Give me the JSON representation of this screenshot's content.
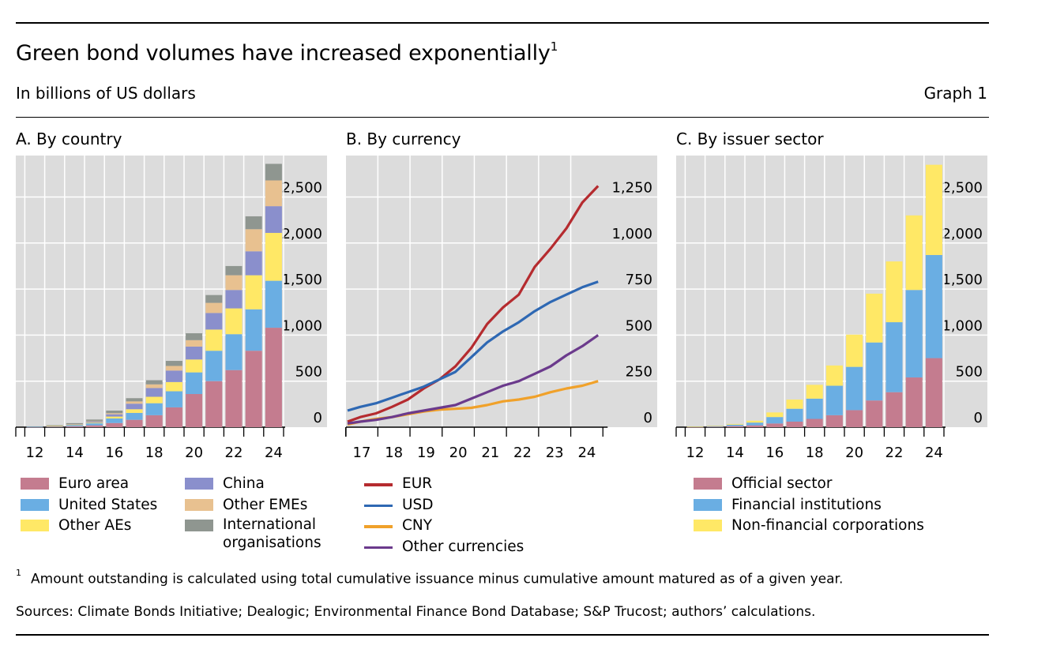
{
  "header": {
    "title": "Green bond volumes have increased exponentially",
    "title_note": "1",
    "subtitle": "In billions of US dollars",
    "graph_label": "Graph 1"
  },
  "footer": {
    "footnote_marker": "1",
    "footnote": "Amount outstanding is calculated using total cumulative issuance minus cumulative amount matured as of a given year.",
    "sources": "Sources: Climate Bonds Initiative; Dealogic; Environmental Finance Bond Database; S&P Trucost; authors’ calculations."
  },
  "colors": {
    "plot_bg": "#dcdcdc",
    "grid": "#ffffff",
    "euro_area": "#c47c8f",
    "united_states": "#6aaee3",
    "other_aes": "#ffe866",
    "china": "#8a8fcc",
    "other_emes": "#e8c190",
    "international_organisations": "#8f9690",
    "eur": "#b52b2f",
    "usd": "#2e68b3",
    "cny": "#f0a12a",
    "other_currencies": "#6b3a8c"
  },
  "chart_data": [
    {
      "type": "bar",
      "stacked": true,
      "title": "A. By country",
      "categories": [
        "12",
        "13",
        "14",
        "15",
        "16",
        "17",
        "18",
        "19",
        "20",
        "21",
        "22",
        "23",
        "24"
      ],
      "x_tick_labels": [
        "12",
        "14",
        "16",
        "18",
        "20",
        "22",
        "24"
      ],
      "y_ticks": [
        "0",
        "500",
        "1,000",
        "1,500",
        "2,000",
        "2,500"
      ],
      "y_tick_values": [
        0,
        500,
        1000,
        1500,
        2000,
        2500
      ],
      "ylim": [
        0,
        2950
      ],
      "y_axis_side": "right",
      "grid": true,
      "series": [
        {
          "name": "Euro area",
          "color_key": "euro_area",
          "values": [
            2,
            5,
            10,
            20,
            45,
            80,
            130,
            215,
            360,
            500,
            620,
            830,
            1080
          ]
        },
        {
          "name": "United States",
          "color_key": "united_states",
          "values": [
            2,
            6,
            12,
            22,
            50,
            75,
            130,
            175,
            235,
            330,
            390,
            450,
            510
          ]
        },
        {
          "name": "Other AEs",
          "color_key": "other_aes",
          "values": [
            0,
            2,
            5,
            8,
            20,
            40,
            70,
            100,
            140,
            230,
            280,
            370,
            520
          ]
        },
        {
          "name": "China",
          "color_key": "china",
          "values": [
            0,
            0,
            3,
            10,
            25,
            60,
            95,
            125,
            140,
            180,
            200,
            260,
            290
          ]
        },
        {
          "name": "Other EMEs",
          "color_key": "other_emes",
          "values": [
            0,
            0,
            2,
            5,
            12,
            25,
            40,
            50,
            70,
            110,
            160,
            240,
            280
          ]
        },
        {
          "name": "International organisations",
          "color_key": "international_organisations",
          "values": [
            5,
            8,
            12,
            18,
            28,
            35,
            45,
            55,
            75,
            85,
            100,
            140,
            180
          ]
        }
      ],
      "legend_order": [
        "Euro area",
        "United States",
        "Other AEs",
        "China",
        "Other EMEs",
        "International organisations"
      ]
    },
    {
      "type": "line",
      "title": "B. By currency",
      "x_tick_labels": [
        "17",
        "18",
        "19",
        "20",
        "21",
        "22",
        "23",
        "24"
      ],
      "xlim": [
        2016.6,
        2024.6
      ],
      "y_ticks": [
        "0",
        "250",
        "500",
        "750",
        "1,000",
        "1,250"
      ],
      "y_tick_values": [
        0,
        250,
        500,
        750,
        1000,
        1250
      ],
      "ylim": [
        0,
        1475
      ],
      "y_axis_side": "right",
      "grid": true,
      "series": [
        {
          "name": "EUR",
          "color_key": "eur",
          "points": [
            [
              2016.6,
              30
            ],
            [
              2017.0,
              55
            ],
            [
              2017.5,
              75
            ],
            [
              2018.0,
              110
            ],
            [
              2018.5,
              150
            ],
            [
              2019.0,
              210
            ],
            [
              2019.5,
              260
            ],
            [
              2020.0,
              330
            ],
            [
              2020.5,
              430
            ],
            [
              2021.0,
              560
            ],
            [
              2021.5,
              650
            ],
            [
              2022.0,
              720
            ],
            [
              2022.5,
              870
            ],
            [
              2023.0,
              970
            ],
            [
              2023.5,
              1080
            ],
            [
              2024.0,
              1220
            ],
            [
              2024.5,
              1310
            ]
          ]
        },
        {
          "name": "USD",
          "color_key": "usd",
          "points": [
            [
              2016.6,
              90
            ],
            [
              2017.0,
              110
            ],
            [
              2017.5,
              130
            ],
            [
              2018.0,
              160
            ],
            [
              2018.5,
              190
            ],
            [
              2019.0,
              220
            ],
            [
              2019.5,
              260
            ],
            [
              2020.0,
              300
            ],
            [
              2020.5,
              380
            ],
            [
              2021.0,
              460
            ],
            [
              2021.5,
              520
            ],
            [
              2022.0,
              570
            ],
            [
              2022.5,
              630
            ],
            [
              2023.0,
              680
            ],
            [
              2023.5,
              720
            ],
            [
              2024.0,
              760
            ],
            [
              2024.5,
              790
            ]
          ]
        },
        {
          "name": "CNY",
          "color_key": "cny",
          "points": [
            [
              2016.6,
              15
            ],
            [
              2017.0,
              30
            ],
            [
              2017.5,
              45
            ],
            [
              2018.0,
              55
            ],
            [
              2018.5,
              70
            ],
            [
              2019.0,
              85
            ],
            [
              2019.5,
              95
            ],
            [
              2020.0,
              100
            ],
            [
              2020.5,
              105
            ],
            [
              2021.0,
              120
            ],
            [
              2021.5,
              140
            ],
            [
              2022.0,
              150
            ],
            [
              2022.5,
              165
            ],
            [
              2023.0,
              190
            ],
            [
              2023.5,
              210
            ],
            [
              2024.0,
              225
            ],
            [
              2024.5,
              250
            ]
          ]
        },
        {
          "name": "Other currencies",
          "color_key": "other_currencies",
          "points": [
            [
              2016.6,
              20
            ],
            [
              2017.0,
              30
            ],
            [
              2017.5,
              40
            ],
            [
              2018.0,
              55
            ],
            [
              2018.5,
              75
            ],
            [
              2019.0,
              90
            ],
            [
              2019.5,
              105
            ],
            [
              2020.0,
              120
            ],
            [
              2020.5,
              155
            ],
            [
              2021.0,
              190
            ],
            [
              2021.5,
              225
            ],
            [
              2022.0,
              250
            ],
            [
              2022.5,
              290
            ],
            [
              2023.0,
              330
            ],
            [
              2023.5,
              390
            ],
            [
              2024.0,
              440
            ],
            [
              2024.5,
              500
            ]
          ]
        }
      ]
    },
    {
      "type": "bar",
      "stacked": true,
      "title": "C. By issuer sector",
      "categories": [
        "12",
        "13",
        "14",
        "15",
        "16",
        "17",
        "18",
        "19",
        "20",
        "21",
        "22",
        "23",
        "24"
      ],
      "x_tick_labels": [
        "12",
        "14",
        "16",
        "18",
        "20",
        "22",
        "24"
      ],
      "y_ticks": [
        "0",
        "500",
        "1,000",
        "1,500",
        "2,000",
        "2,500"
      ],
      "y_tick_values": [
        0,
        500,
        1000,
        1500,
        2000,
        2500
      ],
      "ylim": [
        0,
        2950
      ],
      "y_axis_side": "right",
      "grid": true,
      "series": [
        {
          "name": "Official sector",
          "color_key": "euro_area",
          "values": [
            2,
            5,
            12,
            20,
            40,
            60,
            90,
            130,
            185,
            290,
            380,
            540,
            750
          ]
        },
        {
          "name": "Financial institutions",
          "color_key": "united_states",
          "values": [
            3,
            8,
            15,
            30,
            70,
            140,
            220,
            320,
            470,
            630,
            760,
            950,
            1120
          ]
        },
        {
          "name": "Non-financial corporations",
          "color_key": "other_aes",
          "values": [
            1,
            3,
            8,
            20,
            50,
            100,
            150,
            220,
            350,
            530,
            660,
            810,
            980
          ]
        }
      ],
      "legend_order": [
        "Official sector",
        "Financial institutions",
        "Non-financial corporations"
      ]
    }
  ]
}
